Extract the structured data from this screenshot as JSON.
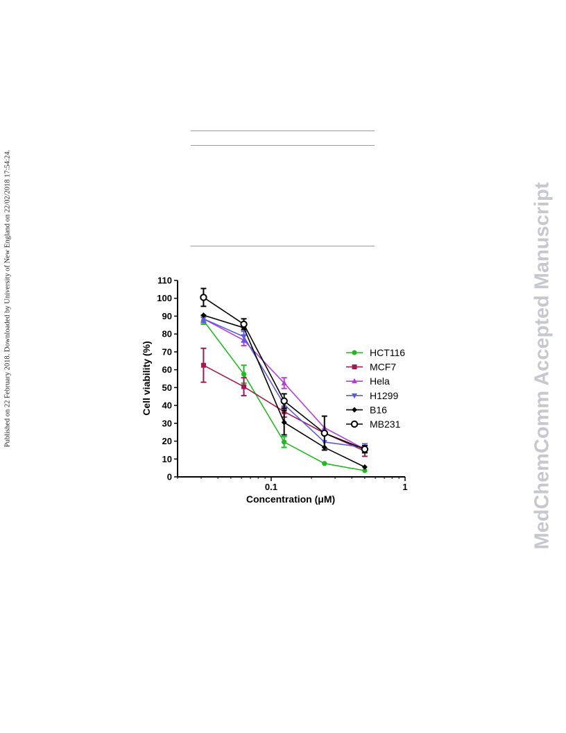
{
  "page": {
    "margin_note": "Published on 22 February 2018. Downloaded by University of New England on 22/02/2018 17:54:24.",
    "watermark": "MedChemComm Accepted Manuscript"
  },
  "chart_data": {
    "type": "line",
    "xlabel": "Concentration (μM)",
    "ylabel": "Cell viability (%)",
    "x_scale": "log",
    "xlim": [
      0.02,
      1
    ],
    "ylim": [
      0,
      110
    ],
    "x_ticks": [
      0.1,
      1
    ],
    "x_tick_labels": [
      "0.1",
      "1"
    ],
    "y_ticks": [
      0,
      10,
      20,
      30,
      40,
      50,
      60,
      70,
      80,
      90,
      100,
      110
    ],
    "legend_position": "right",
    "x": [
      0.03125,
      0.0625,
      0.125,
      0.25,
      0.5
    ],
    "series": [
      {
        "name": "HCT116",
        "color": "#22b822",
        "marker": "circle",
        "values": [
          87.5,
          57.5,
          19.5,
          7.5,
          3.5
        ],
        "errors": [
          2,
          5,
          3,
          0,
          0
        ]
      },
      {
        "name": "MCF7",
        "color": "#9e1a52",
        "marker": "square",
        "values": [
          62.5,
          50.5,
          36.5,
          24.5,
          14.5
        ],
        "errors": [
          9.5,
          5,
          3,
          0,
          3
        ]
      },
      {
        "name": "Hela",
        "color": "#b03fd6",
        "marker": "triangle-up",
        "values": [
          88.5,
          76.5,
          52.5,
          27.5,
          15.5
        ],
        "errors": [
          2,
          3,
          3,
          0,
          0
        ]
      },
      {
        "name": "H1299",
        "color": "#5a5ae0",
        "marker": "triangle-down",
        "values": [
          88.5,
          78.5,
          40.5,
          19.5,
          16.5
        ],
        "errors": [
          2,
          3,
          2,
          0,
          2
        ]
      },
      {
        "name": "B16",
        "color": "#000000",
        "marker": "diamond",
        "values": [
          90.5,
          83.5,
          30.5,
          16.5,
          5.5
        ],
        "errors": [
          0,
          0,
          7,
          0,
          0
        ]
      },
      {
        "name": "MB231",
        "color": "#000000",
        "marker": "open-circle",
        "values": [
          100.5,
          85.5,
          42.5,
          24.5,
          15.5
        ],
        "errors": [
          5,
          3,
          4,
          9.5,
          2
        ]
      }
    ]
  }
}
